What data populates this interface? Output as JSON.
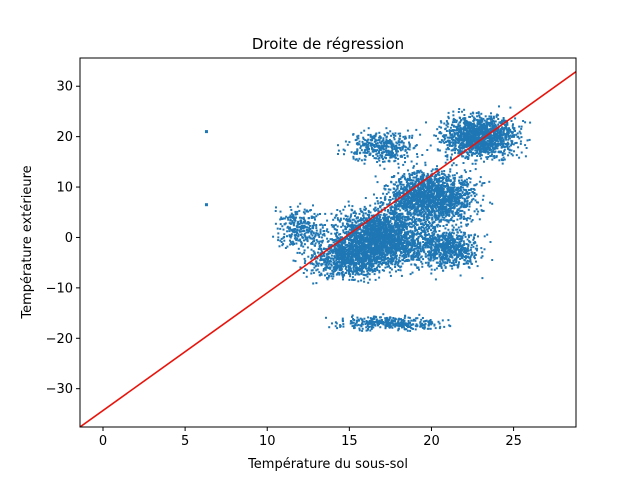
{
  "chart_data": {
    "type": "scatter",
    "title": "Droite de régression",
    "xlabel": "Température du sous-sol",
    "ylabel": "Température extérieure",
    "xlim": [
      -1.4,
      28.8
    ],
    "ylim": [
      -37.6,
      35.6
    ],
    "xticks": [
      0,
      5,
      10,
      15,
      20,
      25
    ],
    "yticks": [
      -30,
      -20,
      -10,
      0,
      10,
      20,
      30
    ],
    "grid": false,
    "legend": "none",
    "point_color": "#1f77b4",
    "line_color": "#e8140c",
    "regression_line": {
      "x": [
        -1.4,
        28.8
      ],
      "y": [
        -37.6,
        32.9
      ]
    },
    "point_clusters": [
      {
        "x_center": 17.0,
        "y_center": 0.0,
        "x_spread": 2.8,
        "y_spread": 5.5,
        "count": 2200
      },
      {
        "x_center": 20.0,
        "y_center": 8.0,
        "x_spread": 2.6,
        "y_spread": 5.0,
        "count": 1800
      },
      {
        "x_center": 23.0,
        "y_center": 20.0,
        "x_spread": 2.2,
        "y_spread": 4.0,
        "count": 1400
      },
      {
        "x_center": 15.0,
        "y_center": -4.0,
        "x_spread": 2.5,
        "y_spread": 4.0,
        "count": 900
      },
      {
        "x_center": 12.0,
        "y_center": 2.0,
        "x_spread": 1.5,
        "y_spread": 4.0,
        "count": 300
      },
      {
        "x_center": 21.0,
        "y_center": -2.0,
        "x_spread": 1.8,
        "y_spread": 4.0,
        "count": 700
      },
      {
        "x_center": 17.5,
        "y_center": -17.0,
        "x_spread": 3.0,
        "y_spread": 1.3,
        "count": 350
      },
      {
        "x_center": 17.0,
        "y_center": 18.0,
        "x_spread": 2.0,
        "y_spread": 3.0,
        "count": 400
      }
    ],
    "outliers": [
      {
        "x": 6.3,
        "y": 21.0
      },
      {
        "x": 6.3,
        "y": 6.5
      }
    ]
  }
}
